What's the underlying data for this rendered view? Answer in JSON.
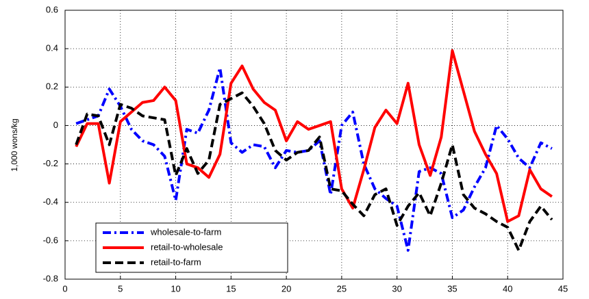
{
  "chart_data": {
    "type": "line",
    "ylabel": "1,000 wons/kg",
    "x": [
      1,
      2,
      3,
      4,
      5,
      6,
      7,
      8,
      9,
      10,
      11,
      12,
      13,
      14,
      15,
      16,
      17,
      18,
      19,
      20,
      21,
      22,
      23,
      24,
      25,
      26,
      27,
      28,
      29,
      30,
      31,
      32,
      33,
      34,
      35,
      36,
      37,
      38,
      39,
      40,
      41,
      42,
      43,
      44
    ],
    "series": [
      {
        "name": "wholesale-to-farm",
        "color": "#0000ff",
        "linestyle": "-.",
        "values": [
          0.01,
          0.03,
          0.05,
          0.19,
          0.1,
          -0.02,
          -0.08,
          -0.1,
          -0.16,
          -0.39,
          -0.02,
          -0.04,
          0.08,
          0.3,
          -0.09,
          -0.14,
          -0.1,
          -0.11,
          -0.22,
          -0.13,
          -0.14,
          -0.13,
          -0.08,
          -0.36,
          0.0,
          0.07,
          -0.2,
          -0.33,
          -0.38,
          -0.42,
          -0.65,
          -0.24,
          -0.22,
          -0.25,
          -0.48,
          -0.44,
          -0.32,
          -0.22,
          0.0,
          -0.07,
          -0.17,
          -0.22,
          -0.09,
          -0.12
        ]
      },
      {
        "name": "retail-to-wholesale",
        "color": "#ff0000",
        "linestyle": "-",
        "values": [
          -0.11,
          0.01,
          0.01,
          -0.3,
          0.02,
          0.07,
          0.12,
          0.13,
          0.2,
          0.13,
          -0.2,
          -0.22,
          -0.27,
          -0.15,
          0.22,
          0.31,
          0.19,
          0.12,
          0.08,
          -0.08,
          0.02,
          -0.02,
          0.0,
          0.02,
          -0.33,
          -0.43,
          -0.23,
          -0.01,
          0.08,
          0.01,
          0.22,
          -0.1,
          -0.26,
          -0.06,
          0.39,
          0.18,
          -0.03,
          -0.15,
          -0.25,
          -0.5,
          -0.47,
          -0.23,
          -0.33,
          -0.37
        ]
      },
      {
        "name": "retail-to-farm",
        "color": "#000000",
        "linestyle": "--",
        "values": [
          -0.1,
          0.06,
          0.05,
          -0.1,
          0.11,
          0.09,
          0.05,
          0.04,
          0.03,
          -0.26,
          -0.12,
          -0.25,
          -0.18,
          0.11,
          0.14,
          0.17,
          0.1,
          0.01,
          -0.13,
          -0.18,
          -0.14,
          -0.13,
          -0.06,
          -0.33,
          -0.34,
          -0.41,
          -0.47,
          -0.36,
          -0.33,
          -0.52,
          -0.42,
          -0.35,
          -0.47,
          -0.3,
          -0.1,
          -0.36,
          -0.43,
          -0.46,
          -0.5,
          -0.53,
          -0.65,
          -0.5,
          -0.42,
          -0.49
        ]
      }
    ],
    "xlim": [
      0,
      45
    ],
    "xticks": [
      0,
      5,
      10,
      15,
      20,
      25,
      30,
      35,
      40,
      45
    ],
    "ylim": [
      -0.8,
      0.6
    ],
    "yticks": [
      -0.8,
      -0.6,
      -0.4,
      -0.2,
      0,
      0.2,
      0.4,
      0.6
    ],
    "grid": true,
    "legend": "lower left"
  }
}
